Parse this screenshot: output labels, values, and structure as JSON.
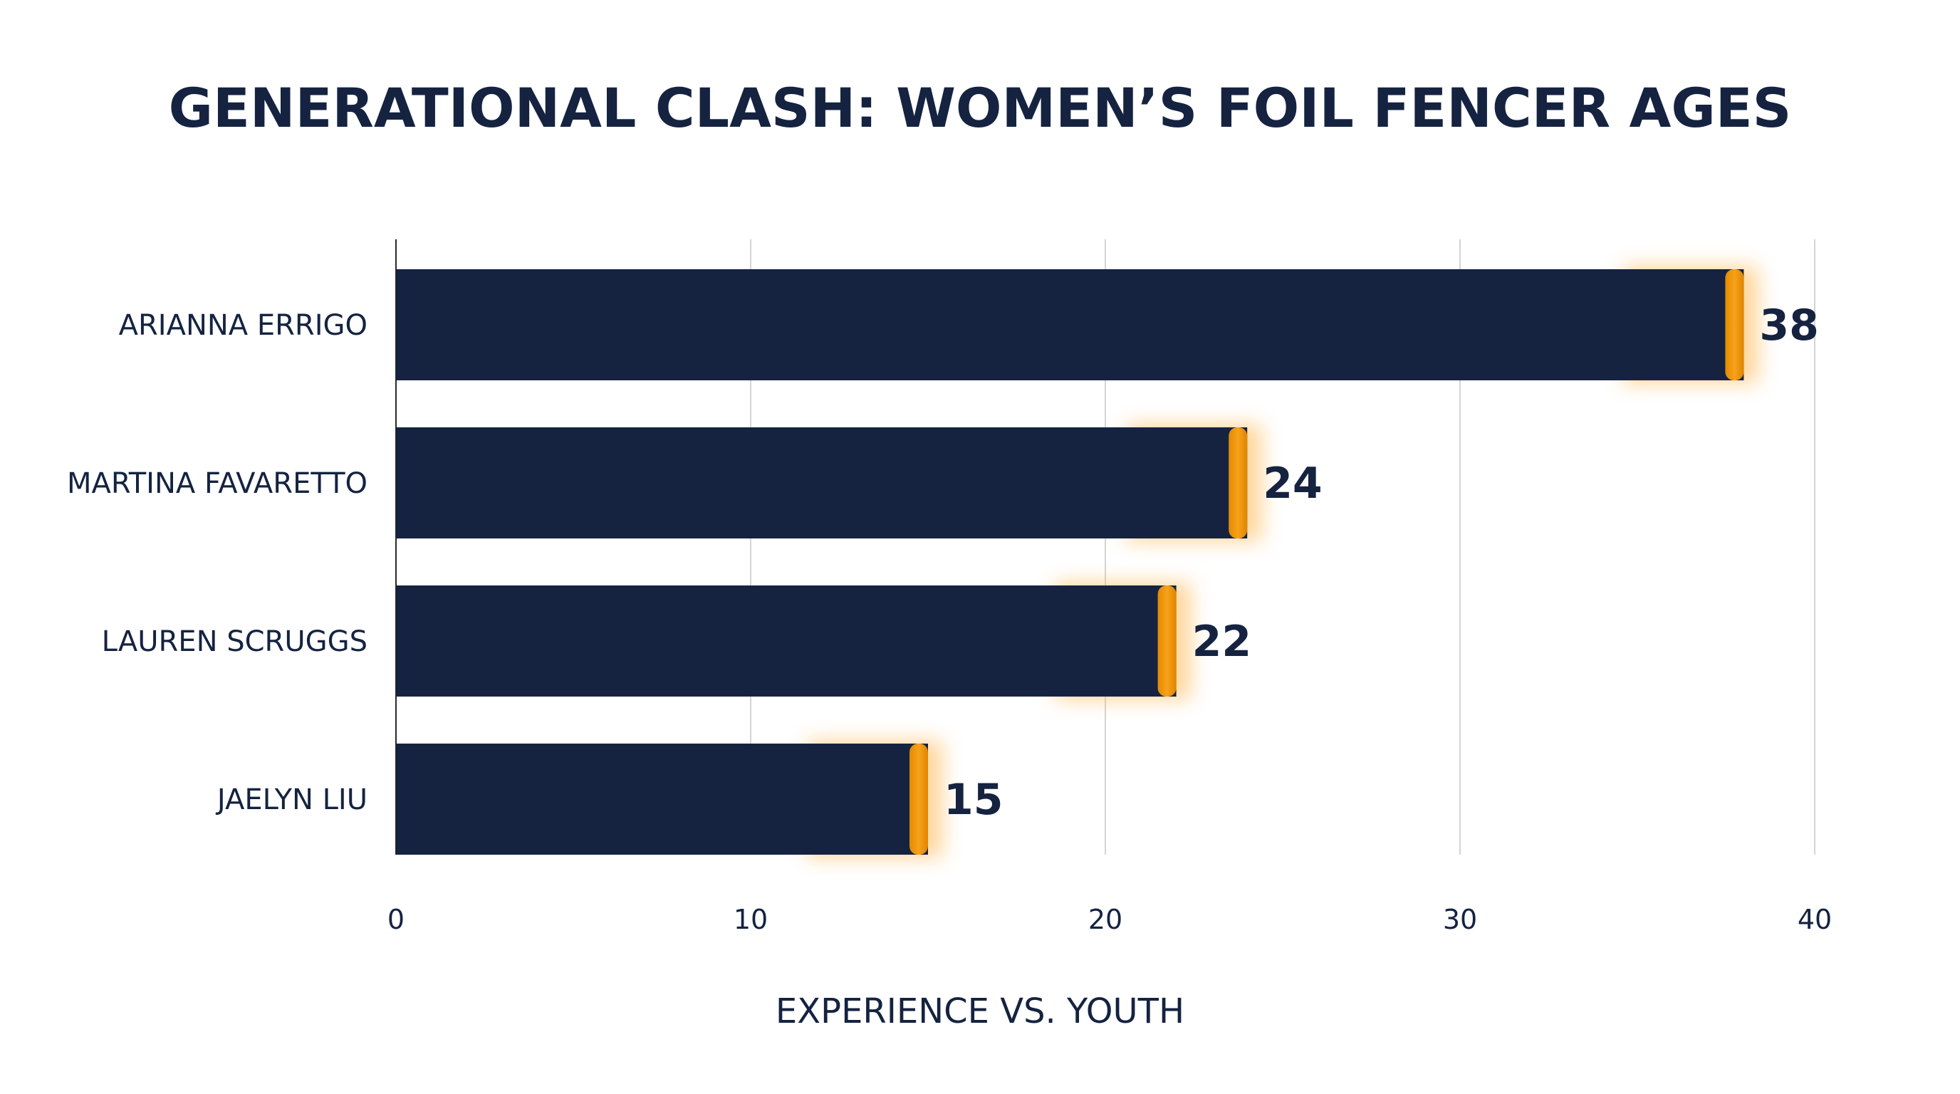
{
  "chart_data": {
    "type": "bar",
    "orientation": "horizontal",
    "title": "GENERATIONAL CLASH: WOMEN’S FOIL FENCER AGES",
    "xlabel": "EXPERIENCE VS. YOUTH",
    "ylabel": "",
    "categories": [
      "ARIANNA ERRIGO",
      "MARTINA FAVARETTO",
      "LAUREN SCRUGGS",
      "JAELYN LIU"
    ],
    "values": [
      38,
      24,
      22,
      15
    ],
    "data_labels": [
      "38",
      "24",
      "22",
      "15"
    ],
    "xlim": [
      0,
      40
    ],
    "x_ticks": [
      0,
      10,
      20,
      30,
      40
    ],
    "x_tick_labels": [
      "0",
      "10",
      "20",
      "30",
      "40"
    ],
    "grid": "vertical",
    "legend": "none",
    "colors": {
      "bar": "#152341",
      "accent": "#f39c12",
      "glow": "#ffb347",
      "text": "#152341",
      "grid": "#d4d4d4"
    }
  }
}
